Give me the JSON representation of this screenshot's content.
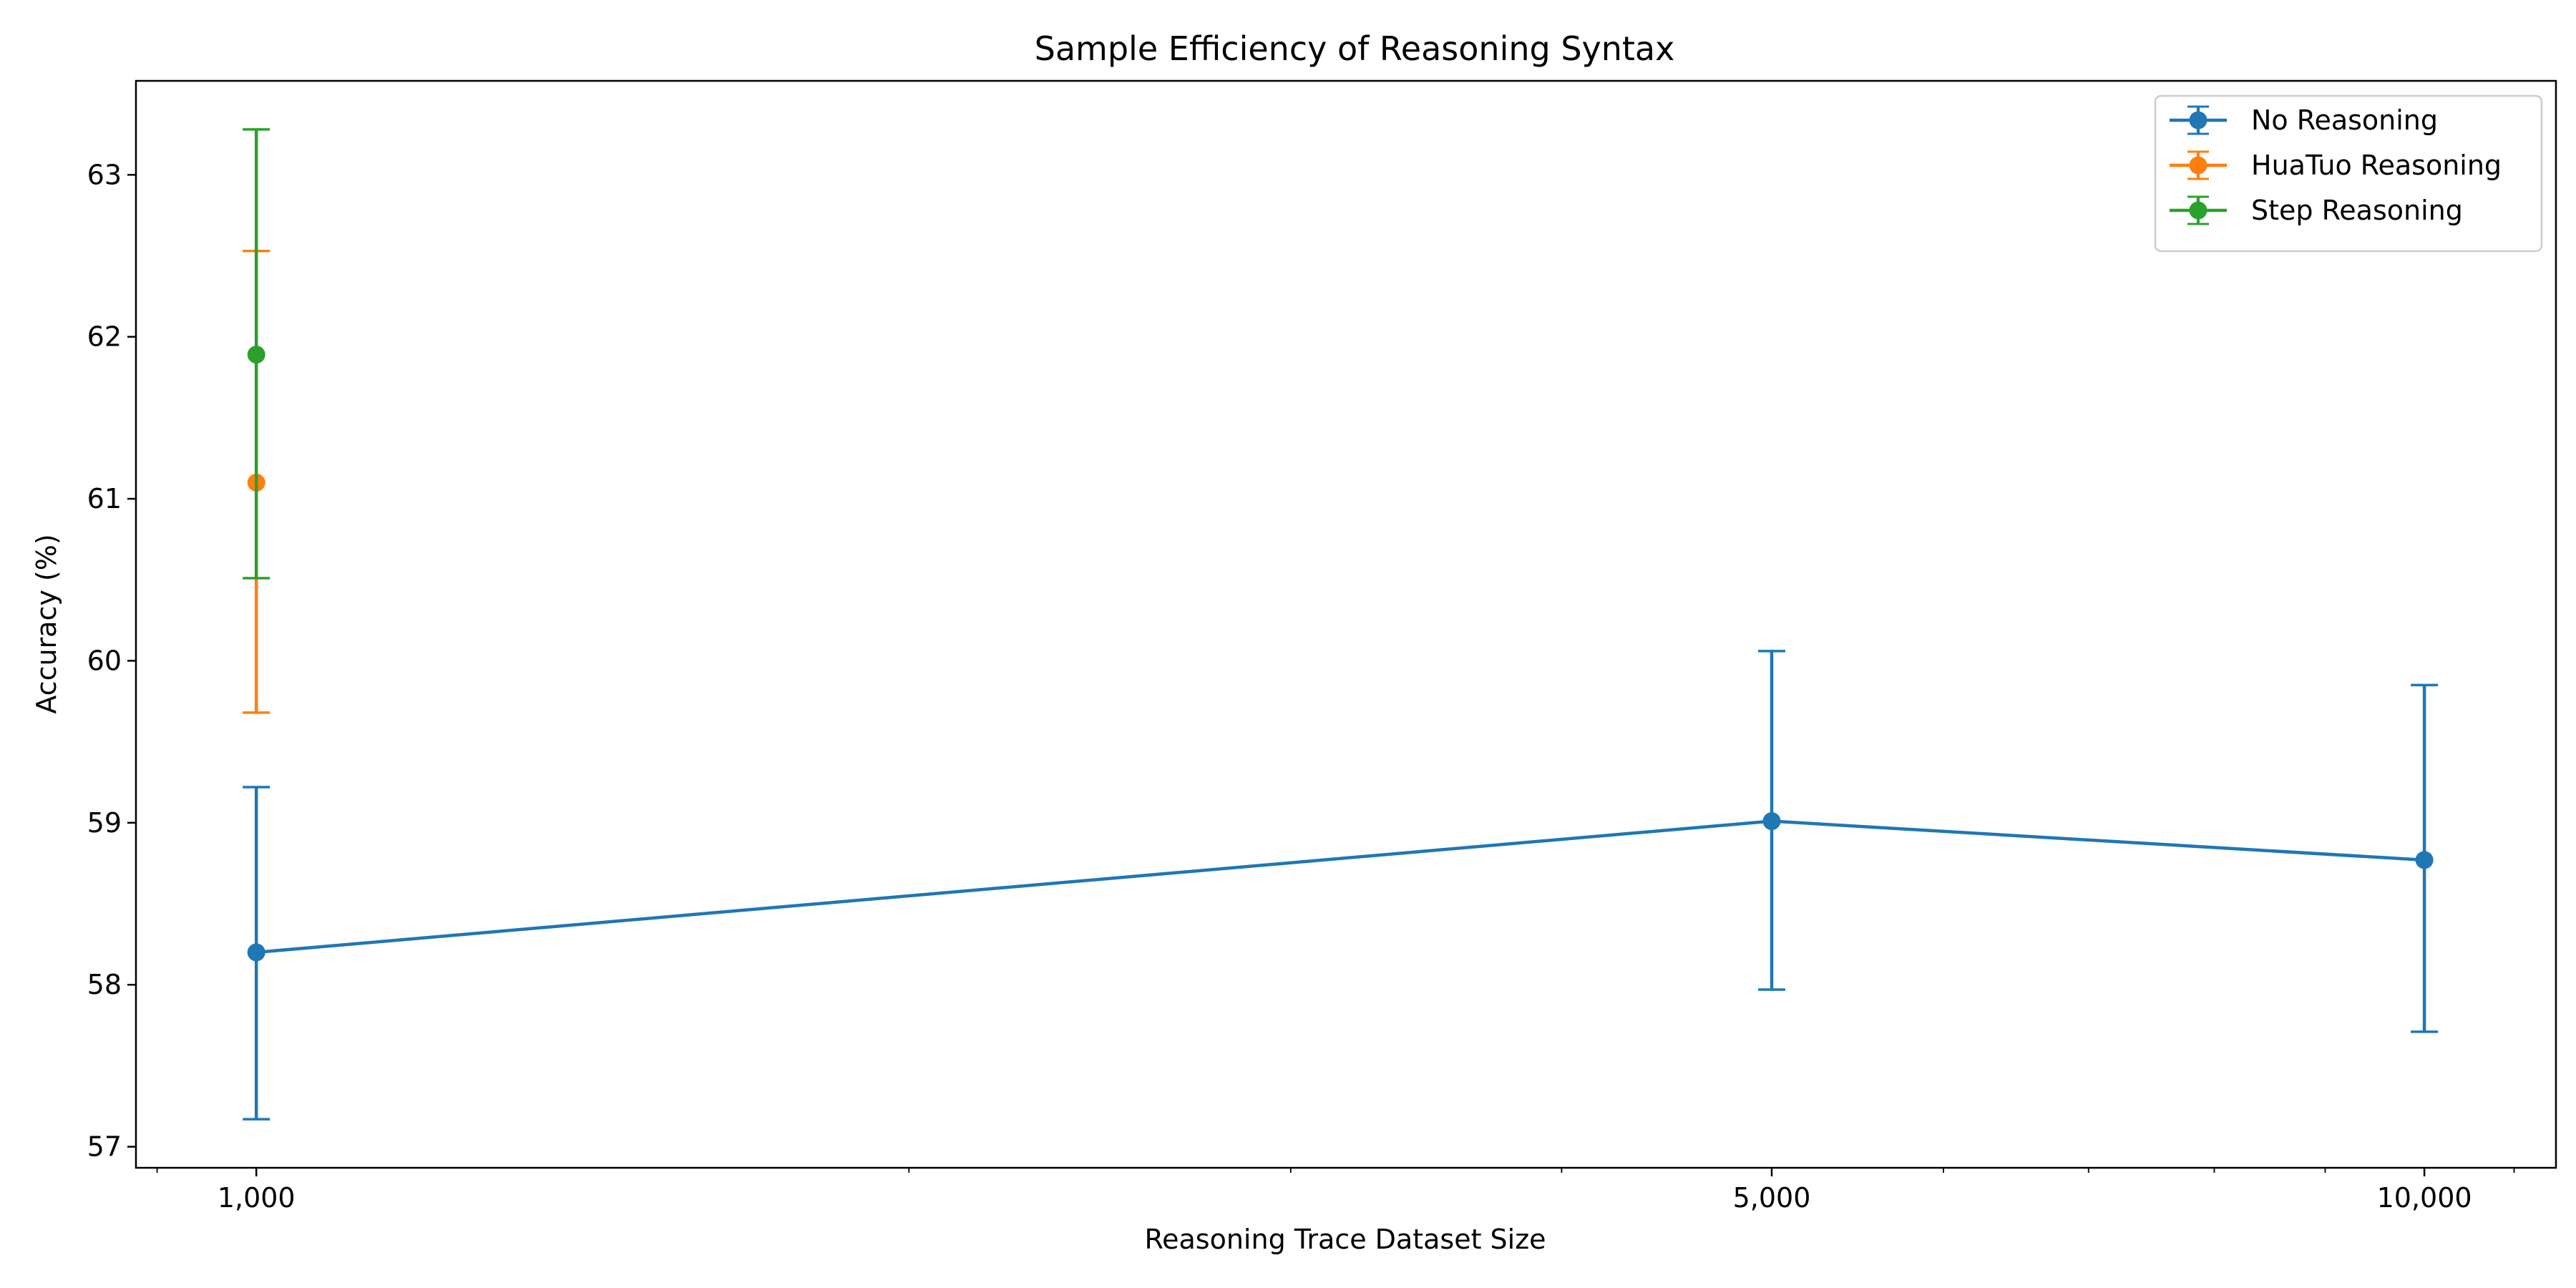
{
  "chart_data": {
    "type": "line",
    "title": "Sample Efficiency of Reasoning Syntax",
    "xlabel": "Reasoning Trace Dataset Size",
    "ylabel": "Accuracy (%)",
    "xscale": "log",
    "xlim": [
      880,
      11500
    ],
    "ylim": [
      56.87,
      63.58
    ],
    "xticks": [
      {
        "value": 1000,
        "label": "1,000"
      },
      {
        "value": 5000,
        "label": "5,000"
      },
      {
        "value": 10000,
        "label": "10,000"
      }
    ],
    "xminor_ticks": [
      900,
      2000,
      3000,
      4000,
      6000,
      7000,
      8000,
      9000,
      11000
    ],
    "yticks": [
      {
        "value": 57,
        "label": "57"
      },
      {
        "value": 58,
        "label": "58"
      },
      {
        "value": 59,
        "label": "59"
      },
      {
        "value": 60,
        "label": "60"
      },
      {
        "value": 61,
        "label": "61"
      },
      {
        "value": 62,
        "label": "62"
      },
      {
        "value": 63,
        "label": "63"
      }
    ],
    "grid": false,
    "legend_position": "top-right",
    "series": [
      {
        "name": "No Reasoning",
        "color": "#1f77b4",
        "x": [
          1000,
          5000,
          10000
        ],
        "y": [
          58.2,
          59.01,
          58.77
        ],
        "err_low": [
          57.17,
          57.97,
          57.71
        ],
        "err_high": [
          59.22,
          60.06,
          59.85
        ]
      },
      {
        "name": "HuaTuo Reasoning",
        "color": "#ff7f0e",
        "x": [
          1000
        ],
        "y": [
          61.1
        ],
        "err_low": [
          59.68
        ],
        "err_high": [
          62.53
        ]
      },
      {
        "name": "Step Reasoning",
        "color": "#2ca02c",
        "x": [
          1000
        ],
        "y": [
          61.89
        ],
        "err_low": [
          60.51
        ],
        "err_high": [
          63.28
        ]
      }
    ]
  }
}
